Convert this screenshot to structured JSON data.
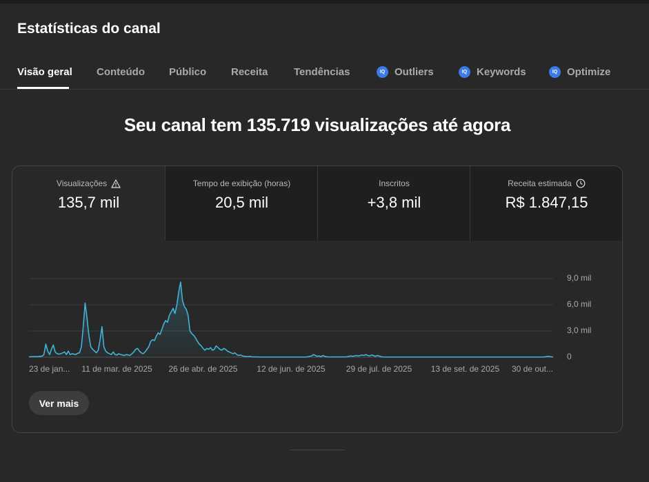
{
  "header": {
    "title": "Estatísticas do canal"
  },
  "tabs": [
    "Visão geral",
    "Conteúdo",
    "Público",
    "Receita",
    "Tendências",
    "Outliers",
    "Keywords",
    "Optimize"
  ],
  "headline": "Seu canal tem 135.719 visualizações até agora",
  "metrics": [
    {
      "label": "Visualizações",
      "value": "135,7 mil"
    },
    {
      "label": "Tempo de exibição (horas)",
      "value": "20,5 mil"
    },
    {
      "label": "Inscritos",
      "value": "+3,8 mil"
    },
    {
      "label": "Receita estimada",
      "value": "R$ 1.847,15"
    }
  ],
  "button": "Ver mais",
  "chart_data": {
    "type": "line",
    "color": "#41b4d8",
    "ylim": [
      0,
      9000
    ],
    "yticks": [
      0,
      {
        "value": 3000,
        "label": "3,0 mil"
      },
      {
        "value": 6000,
        "label": "6,0 mil"
      },
      {
        "value": 9000,
        "label": "9,0 mil"
      }
    ],
    "grid": true,
    "categories": [
      "23 de jan...",
      null,
      null,
      null,
      null,
      null,
      null,
      null,
      null,
      null,
      null,
      null,
      null,
      null,
      null,
      null,
      null,
      null,
      null,
      null,
      null,
      null,
      null,
      null,
      null,
      null,
      null,
      null,
      null,
      null,
      null,
      null,
      null,
      null,
      null,
      null,
      null,
      null,
      null,
      null,
      null,
      null,
      null,
      null,
      null,
      null,
      null,
      "11 de mar. de 2025",
      null,
      null,
      null,
      null,
      null,
      null,
      null,
      null,
      null,
      null,
      null,
      null,
      null,
      null,
      null,
      null,
      null,
      null,
      null,
      null,
      null,
      null,
      null,
      null,
      null,
      null,
      null,
      null,
      null,
      null,
      null,
      null,
      null,
      null,
      null,
      null,
      null,
      null,
      null,
      null,
      null,
      null,
      null,
      null,
      null,
      "26 de abr. de 2025",
      null,
      null,
      null,
      null,
      null,
      null,
      null,
      null,
      null,
      null,
      null,
      null,
      null,
      null,
      null,
      null,
      null,
      null,
      null,
      null,
      null,
      null,
      null,
      null,
      null,
      null,
      null,
      null,
      null,
      null,
      null,
      null,
      null,
      null,
      null,
      null,
      null,
      null,
      null,
      null,
      null,
      null,
      null,
      null,
      null,
      null,
      "12 de jun. de 2025",
      null,
      null,
      null,
      null,
      null,
      null,
      null,
      null,
      null,
      null,
      null,
      null,
      null,
      null,
      null,
      null,
      null,
      null,
      null,
      null,
      null,
      null,
      null,
      null,
      null,
      null,
      null,
      null,
      null,
      null,
      null,
      null,
      null,
      null,
      null,
      null,
      null,
      null,
      null,
      null,
      null,
      null,
      null,
      null,
      null,
      null,
      "29 de jul. de 2025",
      null,
      null,
      null,
      null,
      null,
      null,
      null,
      null,
      null,
      null,
      null,
      null,
      null,
      null,
      null,
      null,
      null,
      null,
      null,
      null,
      null,
      null,
      null,
      null,
      null,
      null,
      null,
      null,
      null,
      null,
      null,
      null,
      null,
      null,
      null,
      null,
      null,
      null,
      null,
      null,
      null,
      null,
      null,
      null,
      null,
      "13 de set. de 2025",
      null,
      null,
      null,
      null,
      null,
      null,
      null,
      null,
      null,
      null,
      null,
      null,
      null,
      null,
      null,
      null,
      null,
      null,
      null,
      null,
      null,
      null,
      null,
      null,
      null,
      null,
      null,
      null,
      null,
      null,
      null,
      null,
      null,
      null,
      null,
      null,
      null,
      null,
      null,
      null,
      null,
      null,
      null,
      null,
      null,
      null,
      "30 de out..."
    ],
    "values": [
      50,
      60,
      60,
      70,
      60,
      80,
      100,
      120,
      300,
      1500,
      700,
      300,
      900,
      1400,
      600,
      400,
      350,
      400,
      500,
      600,
      300,
      700,
      300,
      400,
      350,
      300,
      450,
      500,
      1200,
      3500,
      6200,
      4500,
      2500,
      1200,
      900,
      700,
      500,
      800,
      2000,
      3500,
      1200,
      700,
      500,
      400,
      300,
      600,
      300,
      250,
      400,
      300,
      250,
      200,
      300,
      250,
      200,
      400,
      600,
      900,
      1000,
      700,
      500,
      400,
      600,
      900,
      1200,
      1800,
      2000,
      1900,
      2400,
      2800,
      2600,
      3200,
      3800,
      4200,
      4000,
      4800,
      5200,
      5600,
      5000,
      6000,
      7500,
      8600,
      6500,
      5800,
      5500,
      4800,
      3000,
      2700,
      2500,
      2200,
      1800,
      1500,
      1300,
      1000,
      800,
      1000,
      900,
      1100,
      800,
      900,
      1300,
      1100,
      900,
      800,
      1000,
      900,
      700,
      600,
      500,
      400,
      500,
      300,
      200,
      250,
      150,
      100,
      80,
      60,
      100,
      50,
      40,
      30,
      30,
      20,
      20,
      20,
      20,
      20,
      20,
      20,
      20,
      20,
      20,
      20,
      20,
      20,
      20,
      20,
      20,
      20,
      20,
      20,
      20,
      20,
      20,
      20,
      20,
      20,
      20,
      50,
      100,
      150,
      300,
      200,
      100,
      150,
      50,
      200,
      100,
      50,
      30,
      30,
      30,
      30,
      30,
      30,
      30,
      30,
      30,
      30,
      50,
      100,
      150,
      100,
      150,
      200,
      150,
      200,
      250,
      200,
      300,
      200,
      150,
      250,
      200,
      100,
      200,
      150,
      50,
      30,
      20,
      20,
      20,
      20,
      20,
      20,
      20,
      20,
      20,
      20,
      20,
      20,
      20,
      20,
      20,
      20,
      20,
      20,
      20,
      20,
      20,
      20,
      20,
      20,
      20,
      20,
      20,
      20,
      20,
      20,
      20,
      20,
      20,
      20,
      20,
      20,
      20,
      20,
      20,
      20,
      20,
      20,
      20,
      20,
      20,
      20,
      20,
      20,
      20,
      20,
      20,
      20,
      20,
      20,
      20,
      20,
      20,
      20,
      20,
      20,
      20,
      20,
      20,
      20,
      20,
      20,
      20,
      20,
      20,
      20,
      20,
      20,
      20,
      20,
      20,
      20,
      20,
      20,
      20,
      20,
      20,
      20,
      20,
      20,
      20,
      20,
      50,
      100,
      80,
      50,
      30
    ]
  }
}
